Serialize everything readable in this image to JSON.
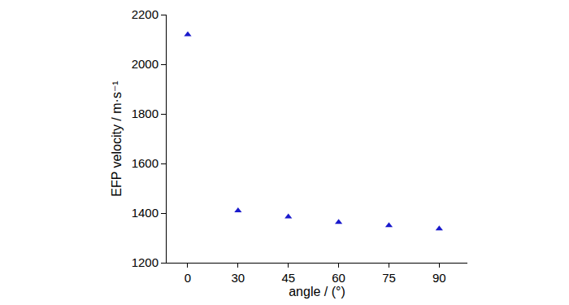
{
  "chart_data": {
    "type": "scatter",
    "x_label": "angle / (°)",
    "y_label": "EFP velocity / m·s⁻¹",
    "categories": [
      "0",
      "30",
      "45",
      "60",
      "75",
      "90"
    ],
    "values": [
      2120,
      1410,
      1385,
      1363,
      1350,
      1337
    ],
    "color": "#1a1acc",
    "marker": "triangle-up",
    "ylim": [
      1200,
      2200
    ],
    "yticks": [
      1200,
      1400,
      1600,
      1800,
      2000,
      2200
    ],
    "grid": false
  }
}
